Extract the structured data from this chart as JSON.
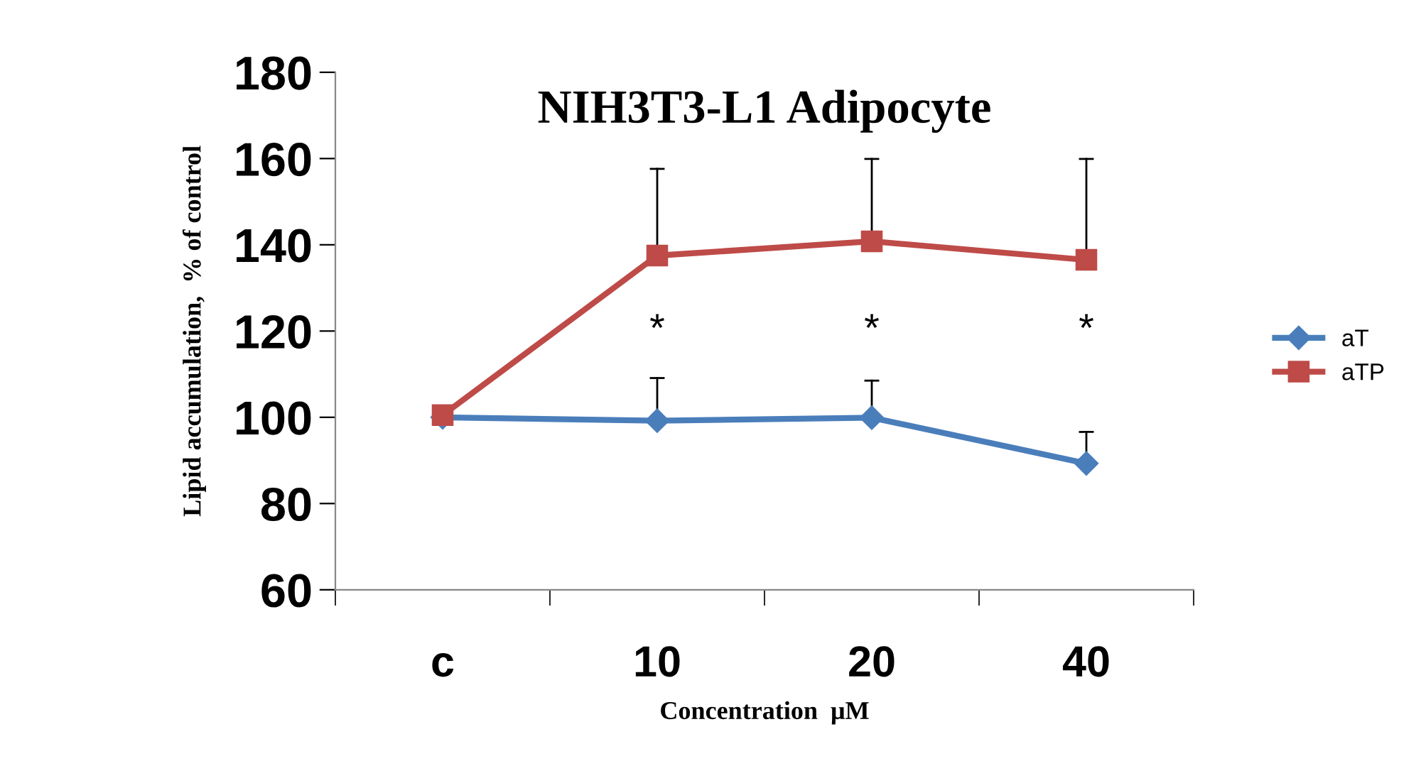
{
  "chart_data": {
    "type": "line",
    "title": "NIH3T3-L1 Adipocyte",
    "xlabel": "Concentration  μM",
    "ylabel": "Lipid accumulation,  % of control",
    "categories": [
      "c",
      "10",
      "20",
      "40"
    ],
    "series": [
      {
        "name": "aT",
        "color": "#4a7ebb",
        "marker": "diamond",
        "values": [
          100,
          99.2,
          99.9,
          89.3
        ],
        "errors": [
          null,
          [
            99.2,
            109.1
          ],
          [
            99.9,
            108.5
          ],
          [
            89.3,
            96.6
          ]
        ]
      },
      {
        "name": "aTP",
        "color": "#be4b48",
        "marker": "square",
        "values": [
          100.5,
          137.5,
          140.8,
          136.5
        ],
        "errors": [
          null,
          [
            137.5,
            157.6
          ],
          [
            140.8,
            159.9
          ],
          [
            136.5,
            159.9
          ]
        ]
      }
    ],
    "ylim": [
      60,
      180
    ],
    "yticks": [
      60,
      80,
      100,
      120,
      140,
      160,
      180
    ],
    "grid": false,
    "legend": "right",
    "line_style": "solid",
    "annotations": [
      "*",
      "*",
      "*"
    ]
  }
}
